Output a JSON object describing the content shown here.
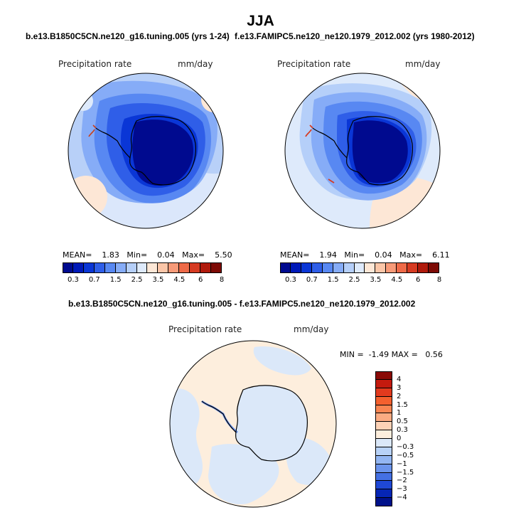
{
  "title": "JJA",
  "panels": [
    {
      "case_title": "b.e13.B1850C5CN.ne120_g16.tuning.005 (yrs 1-24)",
      "variable": "Precipitation rate",
      "units": "mm/day",
      "mean_label": "MEAN=",
      "mean": "1.83",
      "min_label": "Min=",
      "min": "0.04",
      "max_label": "Max=",
      "max": "5.50"
    },
    {
      "case_title": "f.e13.FAMIPC5.ne120_ne120.1979_2012.002 (yrs 1980-2012)",
      "variable": "Precipitation rate",
      "units": "mm/day",
      "mean_label": "MEAN=",
      "mean": "1.94",
      "min_label": "Min=",
      "min": "0.04",
      "max_label": "Max=",
      "max": "6.11"
    }
  ],
  "diff": {
    "title": "b.e13.B1850C5CN.ne120_g16.tuning.005 - f.e13.FAMIPC5.ne120_ne120.1979_2012.002",
    "variable": "Precipitation rate",
    "units": "mm/day",
    "stats": "MIN =  -1.49 MAX =   0.56"
  },
  "chart_data": [
    {
      "type": "heatmap",
      "projection": "south polar stereographic",
      "variable": "Precipitation rate",
      "units": "mm/day",
      "mean": 1.83,
      "min": 0.04,
      "max": 5.5,
      "colorbar_levels": [
        "0.3",
        "0.7",
        "1",
        "1.5",
        "2",
        "2.5",
        "3",
        "3.5",
        "4",
        "4.5",
        "5",
        "6",
        "7",
        "8"
      ],
      "colorbar_labels": [
        "0.3",
        "0.7",
        "1.5",
        "2.5",
        "3.5",
        "4.5",
        "6",
        "8"
      ],
      "colorbar_colors": [
        "#000a8f",
        "#0019b8",
        "#0a36d6",
        "#2f5ee8",
        "#5888f2",
        "#86acf7",
        "#b5cff9",
        "#deeafb",
        "#fde7d6",
        "#fbc6a8",
        "#f79a78",
        "#ee6a48",
        "#d63b22",
        "#b01a0c",
        "#7d0a05"
      ]
    },
    {
      "type": "heatmap",
      "projection": "south polar stereographic",
      "variable": "Precipitation rate",
      "units": "mm/day",
      "mean": 1.94,
      "min": 0.04,
      "max": 6.11,
      "colorbar_levels": [
        "0.3",
        "0.7",
        "1",
        "1.5",
        "2",
        "2.5",
        "3",
        "3.5",
        "4",
        "4.5",
        "5",
        "6",
        "7",
        "8"
      ],
      "colorbar_labels": [
        "0.3",
        "0.7",
        "1.5",
        "2.5",
        "3.5",
        "4.5",
        "6",
        "8"
      ],
      "colorbar_colors": [
        "#000a8f",
        "#0019b8",
        "#0a36d6",
        "#2f5ee8",
        "#5888f2",
        "#86acf7",
        "#b5cff9",
        "#deeafb",
        "#fde7d6",
        "#fbc6a8",
        "#f79a78",
        "#ee6a48",
        "#d63b22",
        "#b01a0c",
        "#7d0a05"
      ]
    },
    {
      "type": "heatmap",
      "projection": "south polar stereographic",
      "variable": "Precipitation rate",
      "units": "mm/day",
      "min": -1.49,
      "max": 0.56,
      "colorbar_labels": [
        "4",
        "3",
        "2",
        "1.5",
        "1",
        "0.5",
        "0.3",
        "0",
        "−0.3",
        "−0.5",
        "−1",
        "−1.5",
        "−2",
        "−3",
        "−4"
      ],
      "colorbar_colors": [
        "#8a0a06",
        "#c41a0e",
        "#e23a1e",
        "#f4602e",
        "#f98552",
        "#fbab82",
        "#fdd2b6",
        "#fdeedd",
        "#dbe8f9",
        "#b8d2f7",
        "#93b6f2",
        "#6b94ec",
        "#4470e3",
        "#1f48d6",
        "#0626b5",
        "#00118a"
      ]
    }
  ]
}
